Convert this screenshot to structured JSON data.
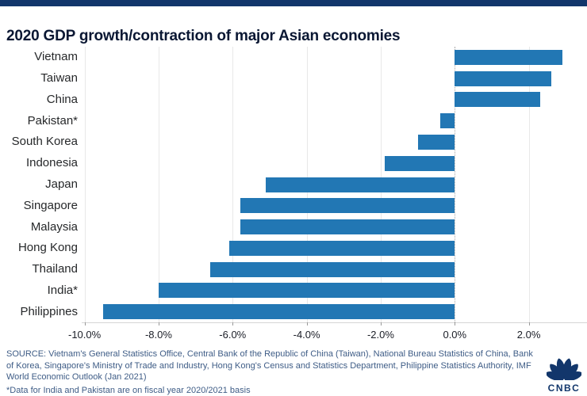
{
  "header": {
    "title": "2020 GDP growth/contraction of major Asian economies"
  },
  "chart_data": {
    "type": "bar",
    "orientation": "horizontal",
    "title": "2020 GDP growth/contraction of major Asian economies",
    "categories": [
      "Vietnam",
      "Taiwan",
      "China",
      "Pakistan*",
      "South Korea",
      "Indonesia",
      "Japan",
      "Singapore",
      "Malaysia",
      "Hong Kong",
      "Thailand",
      "India*",
      "Philippines"
    ],
    "values": [
      2.9,
      2.6,
      2.3,
      -0.4,
      -1.0,
      -1.9,
      -5.1,
      -5.8,
      -5.8,
      -6.1,
      -6.6,
      -8.0,
      -9.5
    ],
    "value_unit": "%",
    "x_ticks": [
      -10,
      -8,
      -6,
      -4,
      -2,
      0,
      2
    ],
    "x_tick_labels": [
      "-10.0%",
      "-8.0%",
      "-6.0%",
      "-4.0%",
      "-2.0%",
      "0.0%",
      "2.0%"
    ],
    "xlim": [
      -10.1,
      3.6
    ],
    "grid": true,
    "zero_line_style": "dotted",
    "legend": "none"
  },
  "colors": {
    "band_navy": "#12366B",
    "bar_blue": "#2277B4",
    "title_text": "#0A1733",
    "grid_gray": "#E8E8E8",
    "source_blue": "#3E5C86"
  },
  "footer": {
    "source": "SOURCE: Vietnam's General Statistics Office, Central Bank of the Republic of China (Taiwan), National Bureau Statistics of China, Bank of Korea, Singapore's Ministry of Trade and Industry, Hong Kong's Census and Statistics Department, Philippine Statistics Authority, IMF World Economic Outlook (Jan 2021)",
    "note": "*Data for India and Pakistan are on fiscal year 2020/2021 basis"
  },
  "logo": {
    "label": "CNBC"
  }
}
